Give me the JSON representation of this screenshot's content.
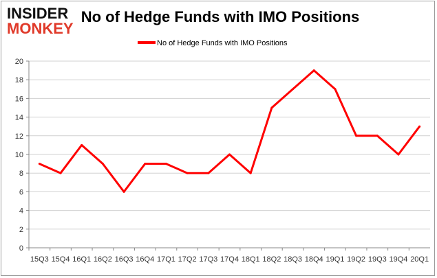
{
  "logo": {
    "line1": "INSIDER",
    "line2": "MONKEY"
  },
  "chart_data": {
    "type": "line",
    "title": "No of Hedge Funds with IMO Positions",
    "categories": [
      "15Q3",
      "15Q4",
      "16Q1",
      "16Q2",
      "16Q3",
      "16Q4",
      "17Q1",
      "17Q2",
      "17Q3",
      "17Q4",
      "18Q1",
      "18Q2",
      "18Q3",
      "18Q4",
      "19Q1",
      "19Q2",
      "19Q3",
      "19Q4",
      "20Q1"
    ],
    "series": [
      {
        "name": "No of Hedge Funds with IMO Positions",
        "color": "#ff0000",
        "values": [
          9,
          8,
          11,
          9,
          6,
          9,
          9,
          8,
          8,
          10,
          8,
          15,
          17,
          19,
          17,
          12,
          12,
          10,
          13
        ]
      }
    ],
    "ylim": [
      0,
      20
    ],
    "yticks": [
      0,
      2,
      4,
      6,
      8,
      10,
      12,
      14,
      16,
      18,
      20
    ],
    "grid": true,
    "legend": "top-center",
    "xlabel": "",
    "ylabel": ""
  }
}
